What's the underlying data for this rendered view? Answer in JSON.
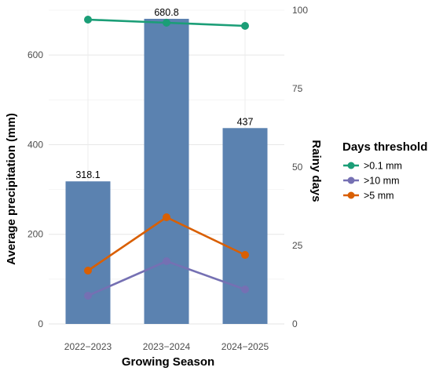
{
  "chart_data": {
    "type": "bar",
    "xlabel": "Growing Season",
    "ylabel": "Average precipitation (mm)",
    "y2label": "Rainy days",
    "categories": [
      "2022−2023",
      "2023−2024",
      "2024−2025"
    ],
    "bars": {
      "values": [
        318.1,
        680.8,
        437
      ],
      "labels": [
        "318.1",
        "680.8",
        "437"
      ],
      "color": "#5b82b0"
    },
    "ylim": [
      0,
      700
    ],
    "yticks": [
      0,
      200,
      400,
      600
    ],
    "ytick_labels": [
      "0",
      "200",
      "400",
      "600"
    ],
    "y2lim": [
      0,
      100
    ],
    "y2ticks": [
      0,
      25,
      50,
      75,
      100
    ],
    "y2tick_labels": [
      "0",
      "25",
      "50",
      "75",
      "100"
    ],
    "legend": {
      "title": "Days threshold",
      "placement": "right"
    },
    "line_series": [
      {
        "name": ">0.1 mm",
        "values": [
          97,
          96,
          95
        ],
        "color": "#1b9e77"
      },
      {
        "name": ">10 mm",
        "values": [
          9,
          20,
          11
        ],
        "color": "#7570b3"
      },
      {
        "name": ">5 mm",
        "values": [
          17,
          34,
          22
        ],
        "color": "#d95f02"
      }
    ],
    "grid": true
  }
}
